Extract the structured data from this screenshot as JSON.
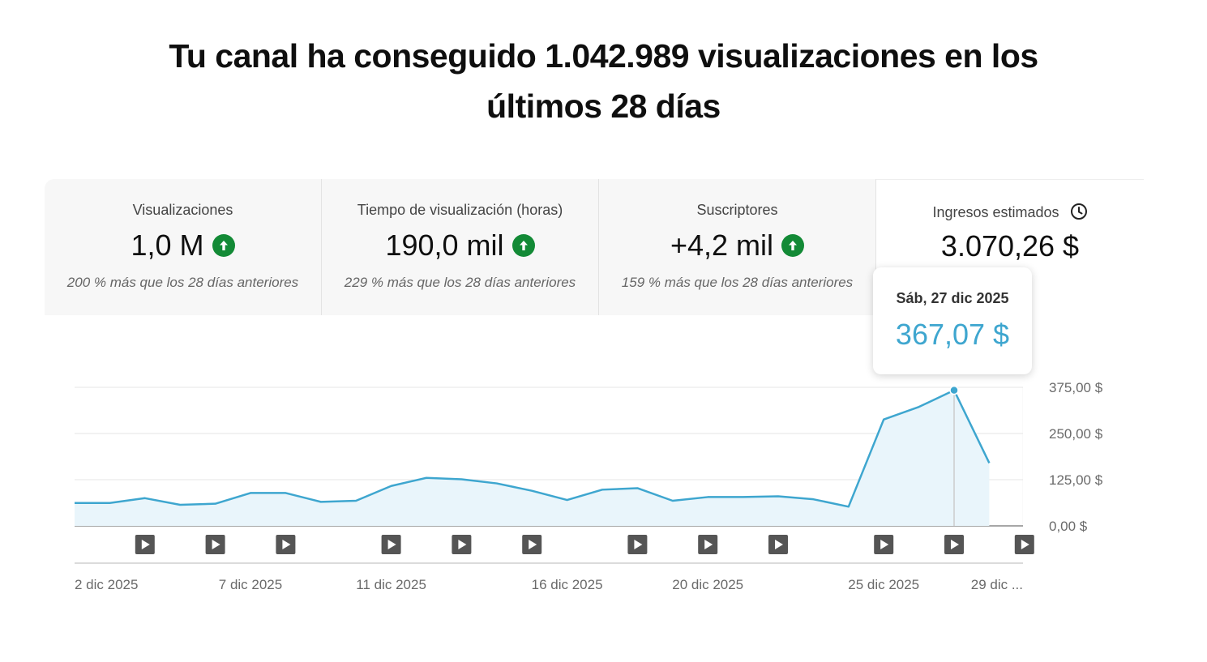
{
  "headline": {
    "line1": "Tu canal ha conseguido 1.042.989 visualizaciones en los",
    "line2": "últimos 28 días"
  },
  "cards": [
    {
      "title": "Visualizaciones",
      "value": "1,0 M",
      "trend": "up",
      "sub": "200 % más que los 28 días anteriores"
    },
    {
      "title": "Tiempo de visualización (horas)",
      "value": "190,0 mil",
      "trend": "up",
      "sub": "229 % más que los 28 días anteriores"
    },
    {
      "title": "Suscriptores",
      "value": "+4,2 mil",
      "trend": "up",
      "sub": "159 % más que los 28 días anteriores"
    },
    {
      "title": "Ingresos estimados",
      "value": "3.070,26 $",
      "icon": "clock-icon"
    }
  ],
  "tooltip": {
    "date": "Sáb, 27 dic 2025",
    "value": "367,07 $"
  },
  "colors": {
    "line": "#3ea6cf",
    "area": "#e9f5fb",
    "trend_up": "#138a36"
  },
  "chart_data": {
    "type": "area",
    "x": [
      "2 dic 2025",
      "3 dic 2025",
      "4 dic 2025",
      "5 dic 2025",
      "6 dic 2025",
      "7 dic 2025",
      "8 dic 2025",
      "9 dic 2025",
      "10 dic 2025",
      "11 dic 2025",
      "12 dic 2025",
      "13 dic 2025",
      "14 dic 2025",
      "15 dic 2025",
      "16 dic 2025",
      "17 dic 2025",
      "18 dic 2025",
      "19 dic 2025",
      "20 dic 2025",
      "21 dic 2025",
      "22 dic 2025",
      "23 dic 2025",
      "24 dic 2025",
      "25 dic 2025",
      "26 dic 2025",
      "27 dic 2025",
      "28 dic 2025"
    ],
    "series": [
      {
        "values": [
          62,
          62,
          75,
          57,
          60,
          89,
          89,
          65,
          68,
          108,
          130,
          126,
          115,
          95,
          70,
          98,
          102,
          68,
          78,
          78,
          80,
          72,
          52,
          288,
          322,
          367,
          170
        ]
      }
    ],
    "xtick_labels": [
      {
        "index": 0,
        "label": "2 dic 2025"
      },
      {
        "index": 5,
        "label": "7 dic 2025"
      },
      {
        "index": 9,
        "label": "11 dic 2025"
      },
      {
        "index": 14,
        "label": "16 dic 2025"
      },
      {
        "index": 18,
        "label": "20 dic 2025"
      },
      {
        "index": 23,
        "label": "25 dic 2025"
      },
      {
        "index": 27,
        "label": "29 dic ..."
      }
    ],
    "yticks": [
      0,
      125,
      250,
      375
    ],
    "ytick_labels": [
      "0,00 $",
      "125,00 $",
      "250,00 $",
      "375,00 $"
    ],
    "ylim": [
      0,
      375
    ],
    "video_markers": [
      2,
      4,
      6,
      9,
      11,
      13,
      16,
      18,
      20,
      23,
      25,
      27
    ],
    "highlight_index": 25,
    "partial_from_index": 26,
    "grid": true
  }
}
